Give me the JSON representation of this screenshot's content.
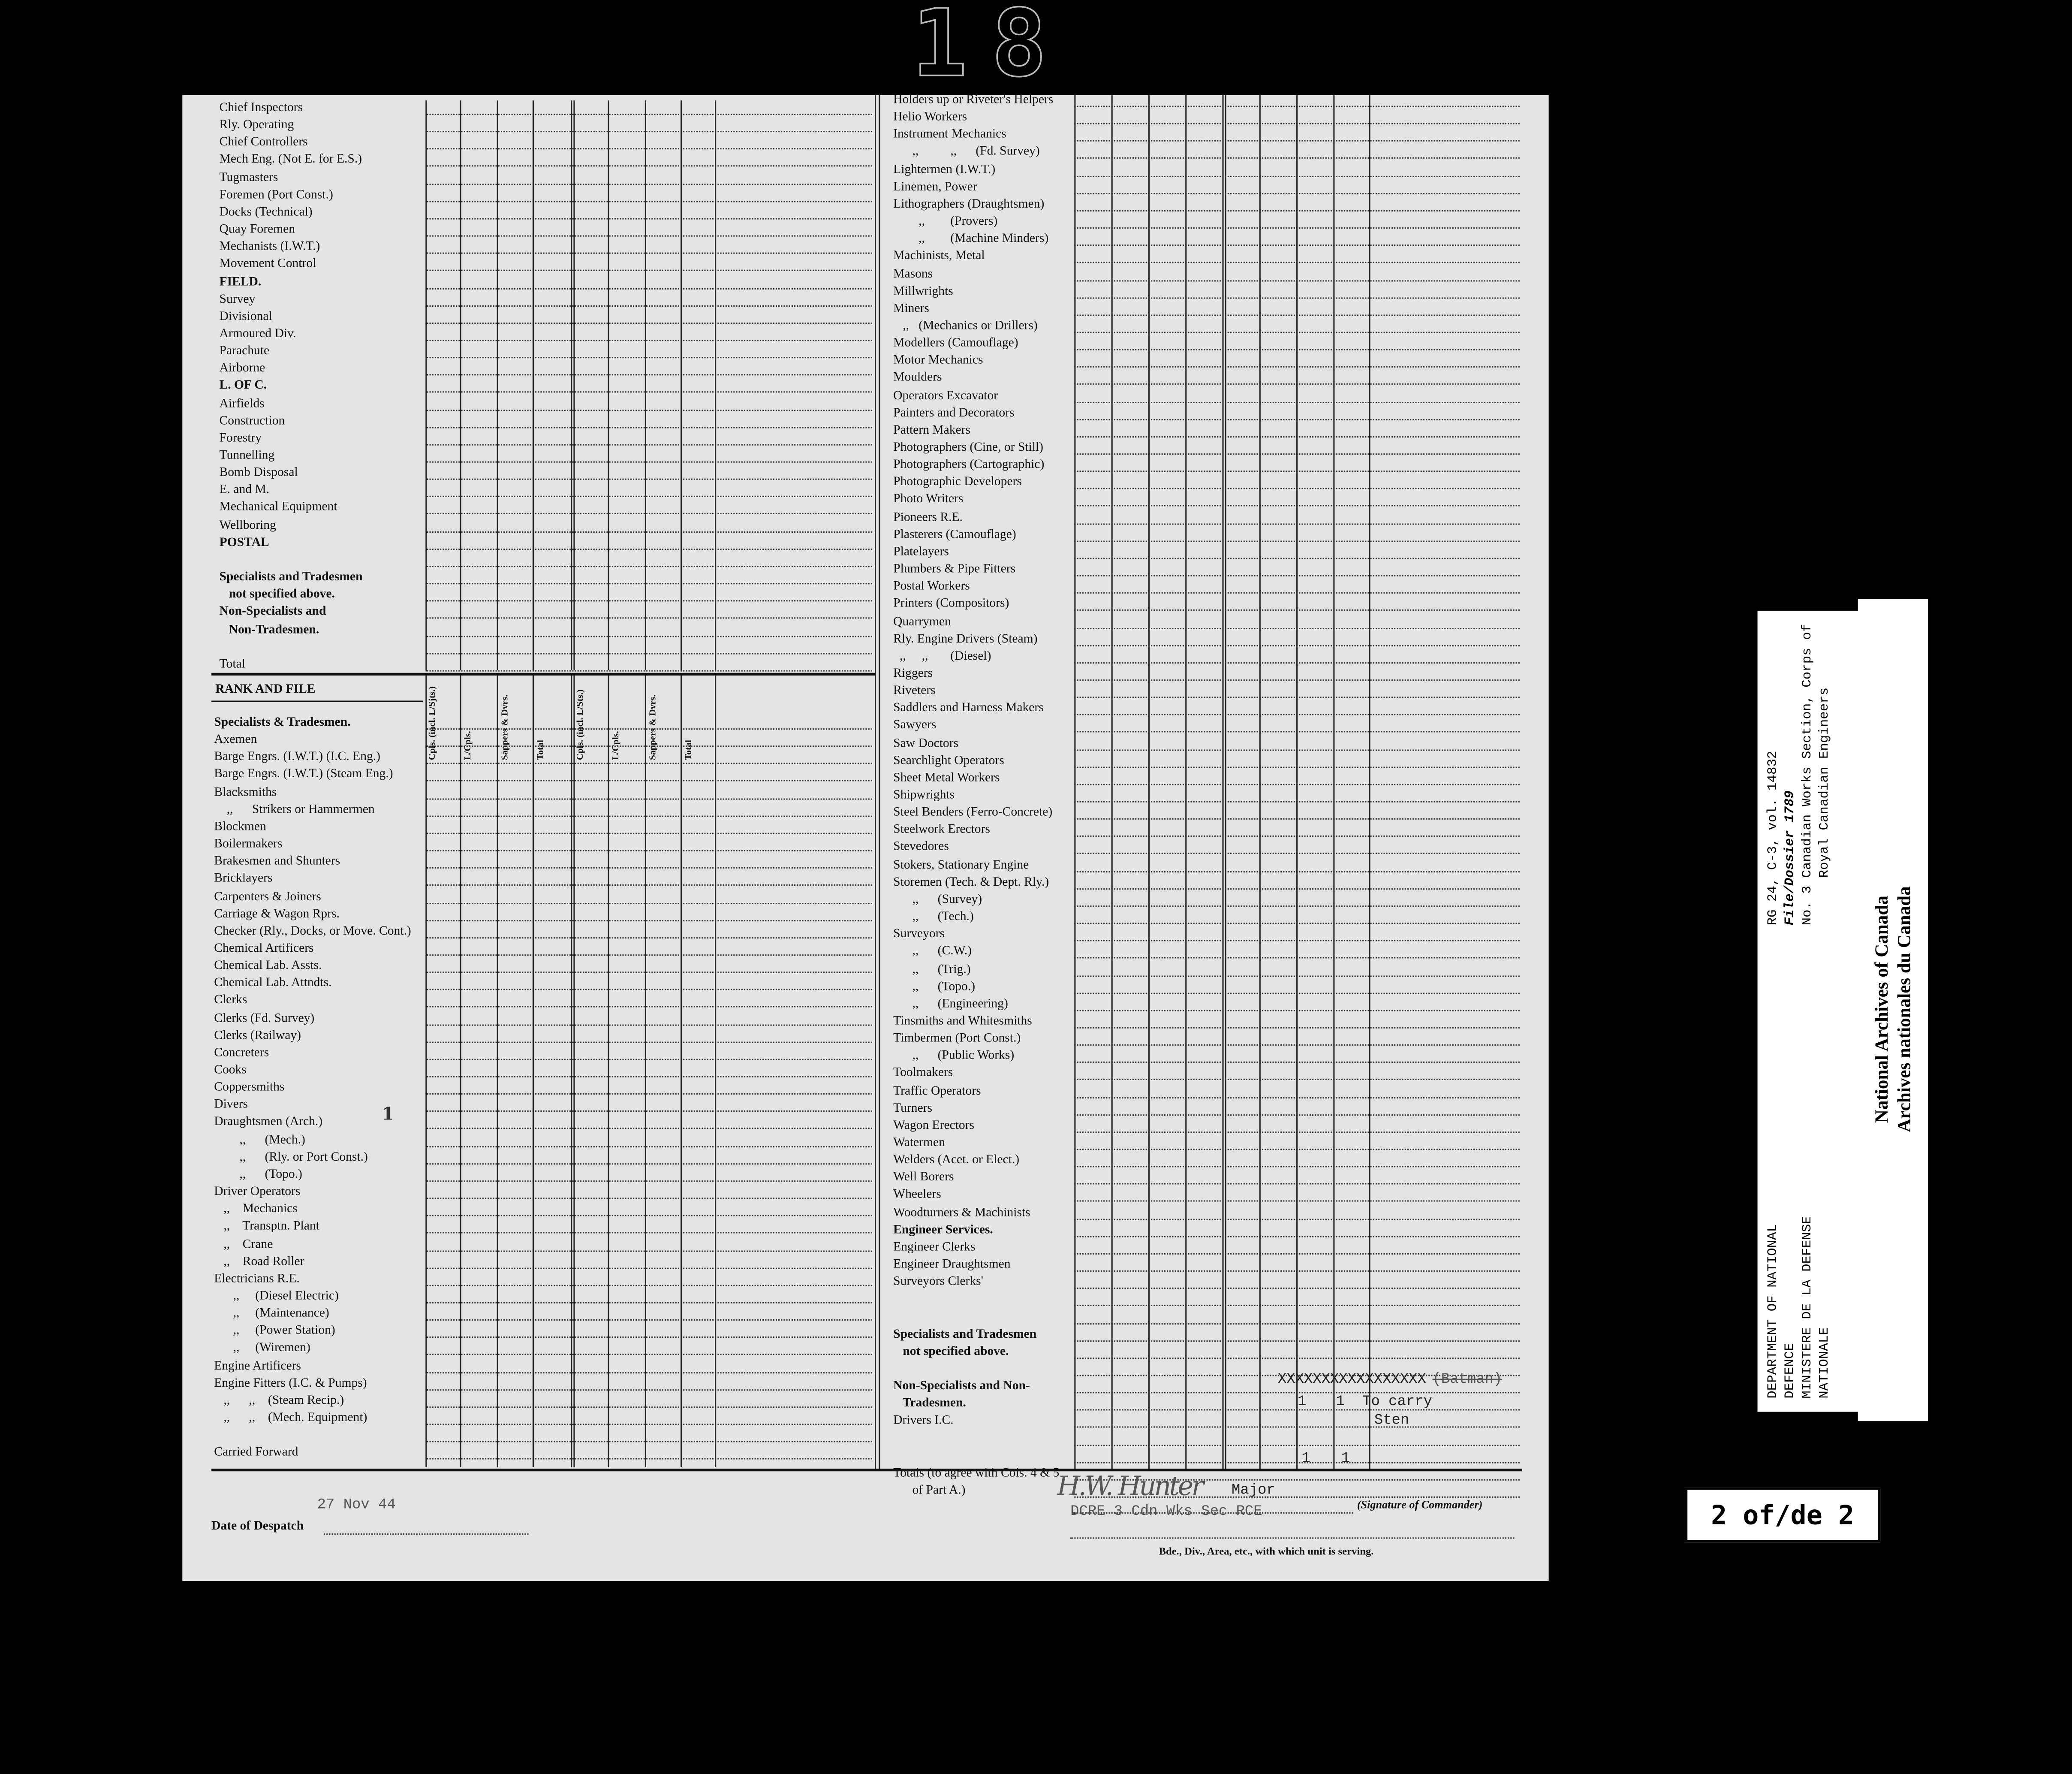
{
  "stamp": "18",
  "left_upper": [
    {
      "label": "Chief Inspectors"
    },
    {
      "label": "Rly. Operating"
    },
    {
      "label": "Chief Controllers"
    },
    {
      "label": "Mech Eng. (Not E. for E.S.)"
    },
    {
      "label": "Tugmasters"
    },
    {
      "label": "Foremen (Port Const.)"
    },
    {
      "label": "Docks (Technical)"
    },
    {
      "label": "Quay Foremen"
    },
    {
      "label": "Mechanists (I.W.T.)"
    },
    {
      "label": "Movement Control"
    },
    {
      "label": "FIELD.",
      "bold": true
    },
    {
      "label": "Survey"
    },
    {
      "label": "Divisional"
    },
    {
      "label": "Armoured Div."
    },
    {
      "label": "Parachute"
    },
    {
      "label": "Airborne"
    },
    {
      "label": "L. OF C.",
      "bold": true
    },
    {
      "label": "Airfields"
    },
    {
      "label": "Construction"
    },
    {
      "label": "Forestry"
    },
    {
      "label": "Tunnelling"
    },
    {
      "label": "Bomb Disposal"
    },
    {
      "label": "E. and M."
    },
    {
      "label": "Mechanical Equipment"
    },
    {
      "label": "Wellboring"
    },
    {
      "label": "POSTAL",
      "bold": true
    },
    {
      "label": ""
    },
    {
      "label": "Specialists and Tradesmen",
      "bold": true
    },
    {
      "label": "   not specified above.",
      "bold": true
    },
    {
      "label": "Non-Specialists and",
      "bold": true
    },
    {
      "label": "   Non-Tradesmen.",
      "bold": true
    },
    {
      "label": ""
    },
    {
      "label": "Total"
    }
  ],
  "rank_and_file_label": "RANK AND FILE",
  "column_headers": [
    "Cpls. (incl. L/Sjts.)",
    "L/Cpls.",
    "Sappers & Dvrs.",
    "Total",
    "Cpls. (incl. L/Sts.)",
    "L/Cpls.",
    "Sappers & Dvrs.",
    "Total"
  ],
  "left_lower": [
    {
      "label": "Specialists & Tradesmen.",
      "bold": true
    },
    {
      "label": "Axemen"
    },
    {
      "label": "Barge Engrs. (I.W.T.) (I.C. Eng.)"
    },
    {
      "label": "Barge Engrs. (I.W.T.) (Steam Eng.)"
    },
    {
      "label": "Blacksmiths"
    },
    {
      "label": "    ,,      Strikers or Hammermen"
    },
    {
      "label": "Blockmen"
    },
    {
      "label": "Boilermakers"
    },
    {
      "label": "Brakesmen and Shunters"
    },
    {
      "label": "Bricklayers"
    },
    {
      "label": "Carpenters & Joiners"
    },
    {
      "label": "Carriage & Wagon Rprs."
    },
    {
      "label": "Checker (Rly., Docks, or Move. Cont.)"
    },
    {
      "label": "Chemical Artificers"
    },
    {
      "label": "Chemical Lab. Assts."
    },
    {
      "label": "Chemical Lab. Attndts."
    },
    {
      "label": "Clerks"
    },
    {
      "label": "Clerks (Fd. Survey)"
    },
    {
      "label": "Clerks (Railway)"
    },
    {
      "label": "Concreters"
    },
    {
      "label": "Cooks"
    },
    {
      "label": "Coppersmiths"
    },
    {
      "label": "Divers"
    },
    {
      "label": "Draughtsmen (Arch.)"
    },
    {
      "label": "        ,,      (Mech.)"
    },
    {
      "label": "        ,,      (Rly. or Port Const.)"
    },
    {
      "label": "        ,,      (Topo.)"
    },
    {
      "label": "Driver Operators"
    },
    {
      "label": "   ,,    Mechanics"
    },
    {
      "label": "   ,,    Transptn. Plant"
    },
    {
      "label": "   ,,    Crane"
    },
    {
      "label": "   ,,    Road Roller"
    },
    {
      "label": "Electricians R.E."
    },
    {
      "label": "      ,,     (Diesel Electric)"
    },
    {
      "label": "      ,,     (Maintenance)"
    },
    {
      "label": "      ,,     (Power Station)"
    },
    {
      "label": "      ,,     (Wiremen)"
    },
    {
      "label": "Engine Artificers"
    },
    {
      "label": "Engine Fitters (I.C. & Pumps)"
    },
    {
      "label": "   ,,      ,,    (Steam Recip.)"
    },
    {
      "label": "   ,,      ,,    (Mech. Equipment)"
    },
    {
      "label": ""
    },
    {
      "label": "Carried Forward"
    }
  ],
  "left_mark": "1",
  "right_list": [
    {
      "label": "Holders up or Riveter's Helpers"
    },
    {
      "label": "Helio Workers"
    },
    {
      "label": "Instrument Mechanics"
    },
    {
      "label": "      ,,          ,,      (Fd. Survey)"
    },
    {
      "label": "Lightermen (I.W.T.)"
    },
    {
      "label": "Linemen, Power"
    },
    {
      "label": "Lithographers (Draughtsmen)"
    },
    {
      "label": "        ,,        (Provers)"
    },
    {
      "label": "        ,,        (Machine Minders)"
    },
    {
      "label": "Machinists, Metal"
    },
    {
      "label": "Masons"
    },
    {
      "label": "Millwrights"
    },
    {
      "label": "Miners"
    },
    {
      "label": "   ,,   (Mechanics or Drillers)"
    },
    {
      "label": "Modellers (Camouflage)"
    },
    {
      "label": "Motor Mechanics"
    },
    {
      "label": "Moulders"
    },
    {
      "label": "Operators Excavator"
    },
    {
      "label": "Painters and Decorators"
    },
    {
      "label": "Pattern Makers"
    },
    {
      "label": "Photographers (Cine, or Still)"
    },
    {
      "label": "Photographers (Cartographic)"
    },
    {
      "label": "Photographic Developers"
    },
    {
      "label": "Photo Writers"
    },
    {
      "label": "Pioneers R.E."
    },
    {
      "label": "Plasterers (Camouflage)"
    },
    {
      "label": "Platelayers"
    },
    {
      "label": "Plumbers & Pipe Fitters"
    },
    {
      "label": "Postal Workers"
    },
    {
      "label": "Printers (Compositors)"
    },
    {
      "label": "Quarrymen"
    },
    {
      "label": "Rly. Engine Drivers (Steam)"
    },
    {
      "label": "  ,,     ,,       (Diesel)"
    },
    {
      "label": "Riggers"
    },
    {
      "label": "Riveters"
    },
    {
      "label": "Saddlers and Harness Makers"
    },
    {
      "label": "Sawyers"
    },
    {
      "label": "Saw Doctors"
    },
    {
      "label": "Searchlight Operators"
    },
    {
      "label": "Sheet Metal Workers"
    },
    {
      "label": "Shipwrights"
    },
    {
      "label": "Steel Benders (Ferro-Concrete)"
    },
    {
      "label": "Steelwork Erectors"
    },
    {
      "label": "Stevedores"
    },
    {
      "label": "Stokers, Stationary Engine"
    },
    {
      "label": "Storemen (Tech. & Dept. Rly.)"
    },
    {
      "label": "      ,,      (Survey)"
    },
    {
      "label": "      ,,      (Tech.)"
    },
    {
      "label": "Surveyors"
    },
    {
      "label": "      ,,      (C.W.)"
    },
    {
      "label": "      ,,      (Trig.)"
    },
    {
      "label": "      ,,      (Topo.)"
    },
    {
      "label": "      ,,      (Engineering)"
    },
    {
      "label": "Tinsmiths and Whitesmiths"
    },
    {
      "label": "Timbermen (Port Const.)"
    },
    {
      "label": "      ,,      (Public Works)"
    },
    {
      "label": "Toolmakers"
    },
    {
      "label": "Traffic Operators"
    },
    {
      "label": "Turners"
    },
    {
      "label": "Wagon Erectors"
    },
    {
      "label": "Watermen"
    },
    {
      "label": "Welders (Acet. or Elect.)"
    },
    {
      "label": "Well Borers"
    },
    {
      "label": "Wheelers"
    },
    {
      "label": "Woodturners & Machinists"
    },
    {
      "label": "Engineer Services.",
      "bold": true
    },
    {
      "label": "Engineer Clerks"
    },
    {
      "label": "Engineer Draughtsmen"
    },
    {
      "label": "Surveyors Clerks'"
    },
    {
      "label": ""
    },
    {
      "label": ""
    },
    {
      "label": "Specialists and Tradesmen",
      "bold": true
    },
    {
      "label": "   not specified above.",
      "bold": true
    },
    {
      "label": ""
    },
    {
      "label": "Non-Specialists and Non-",
      "bold": true
    },
    {
      "label": "   Tradesmen.",
      "bold": true
    },
    {
      "label": "Drivers I.C."
    },
    {
      "label": ""
    },
    {
      "label": ""
    },
    {
      "label": "Totals (to agree with Cols. 4 & 5"
    },
    {
      "label": "      of Part A.)"
    }
  ],
  "entries": {
    "struck_text": "XXXXXXXXXXXXXXXXX",
    "struck_word": "(Batman)",
    "drivers_ic_sappers": "1",
    "drivers_ic_total": "1",
    "remarks_line1": "To carry",
    "remarks_line2": "Sten",
    "totals_sappers": "1",
    "totals_total": "1"
  },
  "footer": {
    "date_value": "27 Nov 44",
    "date_label": "Date of Despatch",
    "signature": "H.W. Hunter",
    "rank": "Major",
    "unit": "DCRE 3 Cdn Wks Sec  RCE",
    "signature_caption": "(Signature of Commander)",
    "unit_caption": "Bde., Div., Area, etc., with which unit is serving."
  },
  "archive_label": {
    "dept_lines": [
      "DEPARTMENT OF NATIONAL",
      "DEFENCE",
      "MINISTERE DE LA DEFENSE",
      "NATIONALE"
    ],
    "ref_lines": [
      "RG 24, C-3, vol. 14832",
      "File/Dossier 1789",
      "No. 3 Canadian Works Section, Corps of",
      "Royal Canadian Engineers"
    ],
    "archives_en": "National Archives of Canada",
    "archives_fr": "Archives nationales du Canada"
  },
  "page_indicator": "2 of/de 2"
}
